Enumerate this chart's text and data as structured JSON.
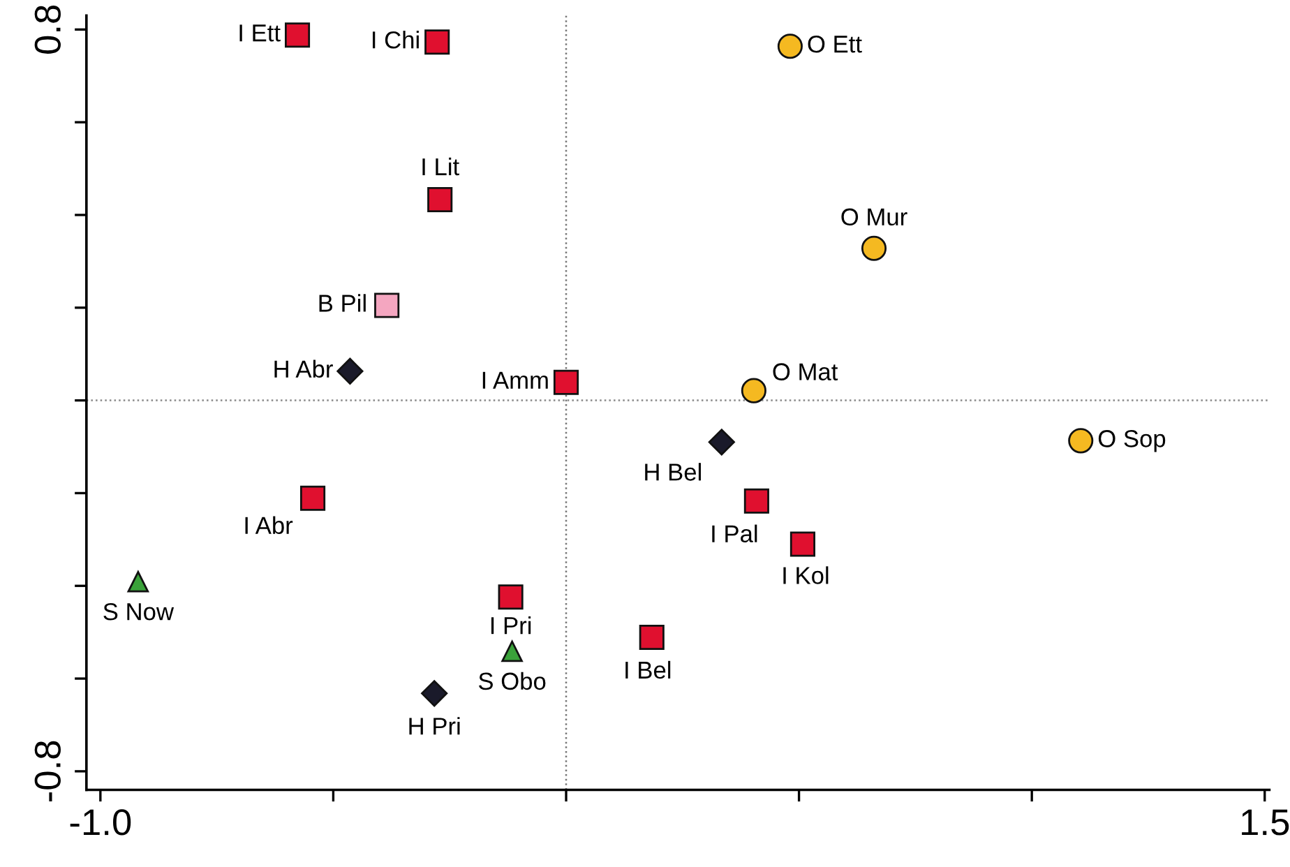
{
  "chart_data": {
    "type": "scatter",
    "xlim": [
      -1.03,
      1.51
    ],
    "ylim": [
      -0.84,
      0.83
    ],
    "xticks": [
      {
        "value": -1.0,
        "label": "-1.0"
      },
      {
        "value": -0.5,
        "label": null
      },
      {
        "value": 0.0,
        "label": null
      },
      {
        "value": 0.5,
        "label": null
      },
      {
        "value": 1.0,
        "label": null
      },
      1.5
    ],
    "yticks": [
      -0.8,
      {
        "value": -0.6,
        "label": null
      },
      {
        "value": -0.4,
        "label": null
      },
      {
        "value": -0.2,
        "label": null
      },
      {
        "value": 0.0,
        "label": null
      },
      {
        "value": 0.2,
        "label": null
      },
      {
        "value": 0.4,
        "label": null
      },
      {
        "value": 0.6,
        "label": null
      },
      0.8
    ],
    "grid": false,
    "legend": false,
    "ref_lines": [
      {
        "axis": "x",
        "value": 0.0,
        "color": "#777777",
        "line_style": "dotted"
      },
      {
        "axis": "y",
        "value": 0.0,
        "color": "#888888",
        "line_style": "dotted"
      }
    ],
    "series": [
      {
        "color": "#e0102f",
        "marker": "square",
        "x": [
          -0.577,
          -0.277,
          -0.271,
          0.0,
          -0.544,
          -0.119,
          0.184,
          0.409,
          0.508
        ],
        "values": [
          0.788,
          0.773,
          0.433,
          0.039,
          -0.211,
          -0.424,
          -0.511,
          -0.217,
          -0.31
        ]
      },
      {
        "color": "#f4a6c0",
        "marker": "square",
        "x": [
          -0.385
        ],
        "values": [
          0.205
        ]
      },
      {
        "color": "#1a1a2a",
        "marker": "diamond",
        "x": [
          -0.464,
          -0.283,
          0.334
        ],
        "values": [
          0.063,
          -0.632,
          -0.09
        ]
      },
      {
        "color": "#3aa23a",
        "marker": "triangle",
        "x": [
          -0.919,
          -0.116
        ],
        "values": [
          -0.391,
          -0.541
        ]
      },
      {
        "color": "#f5b921",
        "marker": "circle",
        "x": [
          0.481,
          0.661,
          0.403,
          1.105
        ],
        "values": [
          0.764,
          0.328,
          0.021,
          -0.087
        ]
      }
    ],
    "annotations": [
      {
        "text": "I Ett",
        "x": -0.577,
        "y": 0.788
      },
      {
        "text": "I Chi",
        "x": -0.277,
        "y": 0.773
      },
      {
        "text": "I Lit",
        "x": -0.271,
        "y": 0.433
      },
      {
        "text": "B Pil",
        "x": -0.385,
        "y": 0.205
      },
      {
        "text": "H Abr",
        "x": -0.464,
        "y": 0.063
      },
      {
        "text": "I Amm",
        "x": 0.0,
        "y": 0.039
      },
      {
        "text": "I Abr",
        "x": -0.544,
        "y": -0.211
      },
      {
        "text": "S Now",
        "x": -0.919,
        "y": -0.391
      },
      {
        "text": "I Pri",
        "x": -0.119,
        "y": -0.424
      },
      {
        "text": "S Obo",
        "x": -0.116,
        "y": -0.541
      },
      {
        "text": "H Pri",
        "x": -0.283,
        "y": -0.632
      },
      {
        "text": "I Bel",
        "x": 0.184,
        "y": -0.511
      },
      {
        "text": "H Bel",
        "x": 0.334,
        "y": -0.09
      },
      {
        "text": "I Pal",
        "x": 0.409,
        "y": -0.217
      },
      {
        "text": "I Kol",
        "x": 0.508,
        "y": -0.31
      },
      {
        "text": "O Ett",
        "x": 0.481,
        "y": 0.764
      },
      {
        "text": "O Mur",
        "x": 0.661,
        "y": 0.328
      },
      {
        "text": "O Mat",
        "x": 0.403,
        "y": 0.021
      },
      {
        "text": "O Sop",
        "x": 1.105,
        "y": -0.087
      }
    ]
  }
}
